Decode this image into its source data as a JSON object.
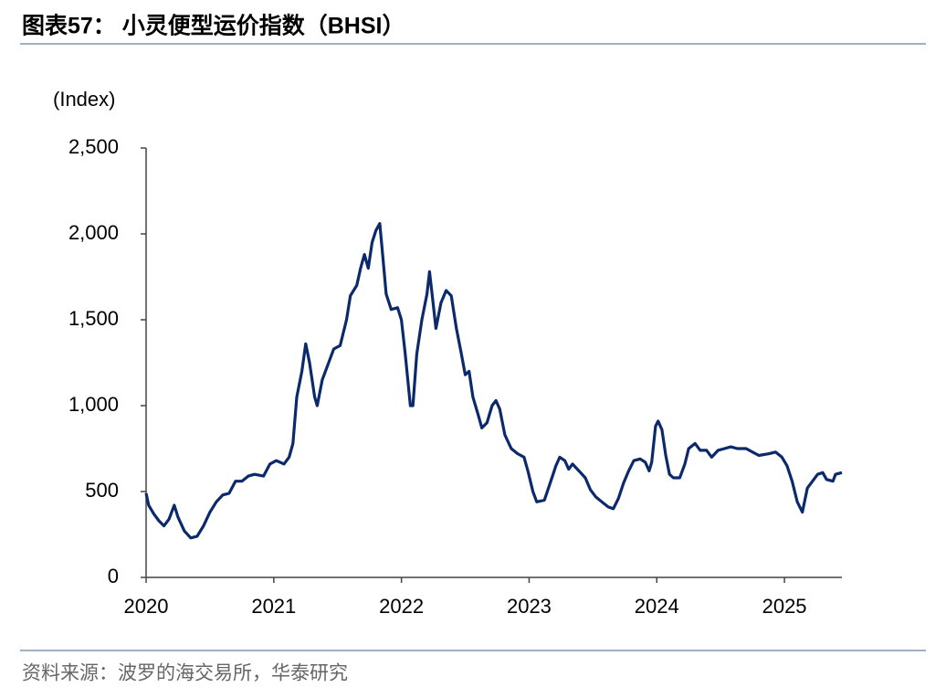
{
  "chart_data": {
    "type": "line",
    "title": "图表57： 小灵便型运价指数（BHSI）",
    "y_label": "(Index)",
    "source": "资料来源：波罗的海交易所，华泰研究",
    "xlim": [
      2020,
      2025.45
    ],
    "xticks": [
      2020,
      2021,
      2022,
      2023,
      2024,
      2025
    ],
    "ylim": [
      0,
      2500
    ],
    "yticks": [
      0,
      500,
      {
        "value": 1000,
        "label": "1,000"
      },
      {
        "value": 1500,
        "label": "1,500"
      },
      {
        "value": 2000,
        "label": "2,000"
      },
      {
        "value": 2500,
        "label": "2,500"
      }
    ],
    "grid": false,
    "x": [
      2020.0,
      2020.02,
      2020.06,
      2020.1,
      2020.14,
      2020.18,
      2020.22,
      2020.25,
      2020.3,
      2020.35,
      2020.4,
      2020.45,
      2020.5,
      2020.55,
      2020.6,
      2020.65,
      2020.7,
      2020.75,
      2020.8,
      2020.85,
      2020.92,
      2020.97,
      2021.02,
      2021.08,
      2021.12,
      2021.15,
      2021.18,
      2021.22,
      2021.25,
      2021.28,
      2021.32,
      2021.34,
      2021.38,
      2021.43,
      2021.47,
      2021.52,
      2021.57,
      2021.6,
      2021.65,
      2021.68,
      2021.71,
      2021.74,
      2021.77,
      2021.8,
      2021.83,
      2021.85,
      2021.88,
      2021.92,
      2021.97,
      2022.0,
      2022.03,
      2022.07,
      2022.09,
      2022.12,
      2022.16,
      2022.2,
      2022.22,
      2022.24,
      2022.27,
      2022.31,
      2022.35,
      2022.39,
      2022.43,
      2022.47,
      2022.5,
      2022.53,
      2022.56,
      2022.6,
      2022.63,
      2022.67,
      2022.71,
      2022.74,
      2022.77,
      2022.81,
      2022.86,
      2022.91,
      2022.96,
      2022.99,
      2023.03,
      2023.06,
      2023.12,
      2023.17,
      2023.21,
      2023.24,
      2023.28,
      2023.31,
      2023.34,
      2023.39,
      2023.44,
      2023.48,
      2023.52,
      2023.57,
      2023.62,
      2023.66,
      2023.7,
      2023.74,
      2023.78,
      2023.82,
      2023.87,
      2023.91,
      2023.94,
      2023.96,
      2023.99,
      2024.01,
      2024.04,
      2024.07,
      2024.1,
      2024.13,
      2024.18,
      2024.22,
      2024.25,
      2024.3,
      2024.34,
      2024.39,
      2024.43,
      2024.48,
      2024.53,
      2024.58,
      2024.63,
      2024.7,
      2024.75,
      2024.8,
      2024.88,
      2024.93,
      2024.98,
      2025.02,
      2025.06,
      2025.1,
      2025.14,
      2025.18,
      2025.22,
      2025.26,
      2025.3,
      2025.33,
      2025.38,
      2025.4,
      2025.45
    ],
    "series": [
      {
        "name": "BHSI",
        "color": "#0c2a6b",
        "values": [
          490,
          420,
          370,
          330,
          300,
          340,
          420,
          350,
          270,
          230,
          240,
          300,
          380,
          440,
          480,
          490,
          560,
          560,
          590,
          600,
          590,
          660,
          680,
          660,
          700,
          780,
          1050,
          1200,
          1360,
          1250,
          1050,
          1000,
          1150,
          1250,
          1330,
          1350,
          1500,
          1640,
          1700,
          1800,
          1880,
          1800,
          1950,
          2020,
          2060,
          1900,
          1650,
          1560,
          1570,
          1500,
          1300,
          1000,
          1000,
          1300,
          1500,
          1650,
          1780,
          1650,
          1450,
          1600,
          1670,
          1640,
          1450,
          1300,
          1180,
          1200,
          1050,
          950,
          870,
          900,
          1000,
          1030,
          980,
          830,
          750,
          720,
          700,
          620,
          500,
          440,
          450,
          560,
          650,
          700,
          680,
          630,
          660,
          620,
          580,
          510,
          470,
          440,
          410,
          400,
          460,
          550,
          620,
          680,
          690,
          670,
          620,
          670,
          880,
          910,
          860,
          710,
          600,
          580,
          580,
          660,
          750,
          780,
          740,
          740,
          700,
          740,
          750,
          760,
          750,
          750,
          730,
          710,
          720,
          730,
          700,
          650,
          560,
          440,
          380,
          520,
          560,
          600,
          610,
          570,
          560,
          600,
          610
        ]
      }
    ]
  }
}
